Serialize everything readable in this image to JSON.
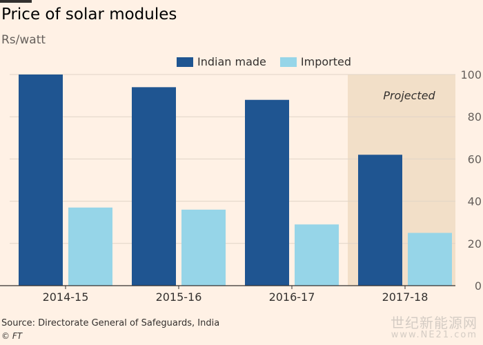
{
  "title": "Price of solar modules",
  "subtitle": "Rs/watt",
  "source": "Source: Directorate General of Safeguards, India",
  "credit": "© FT",
  "watermark": "世纪新能源网",
  "watermark_url": "www.NE21.com",
  "colors": {
    "indian": "#1f5591",
    "imported": "#96d5e8",
    "projected_band": "#f2dfc8",
    "grid": "#e0d4c7",
    "axis": "#33302e"
  },
  "chart_data": {
    "type": "bar",
    "title": "Price of solar modules",
    "ylabel": "Rs/watt",
    "categories": [
      "2014-15",
      "2015-16",
      "2016-17",
      "2017-18"
    ],
    "series": [
      {
        "name": "Indian made",
        "values": [
          100,
          94,
          88,
          62
        ]
      },
      {
        "name": "Imported",
        "values": [
          37,
          36,
          29,
          25
        ]
      }
    ],
    "ylim": [
      0,
      100
    ],
    "yticks": [
      "0",
      "20",
      "40",
      "60",
      "80",
      "100"
    ],
    "y_axis_side": "right",
    "grid": true,
    "legend": "top",
    "annotation": {
      "text": "Projected",
      "category": "2017-18"
    }
  }
}
